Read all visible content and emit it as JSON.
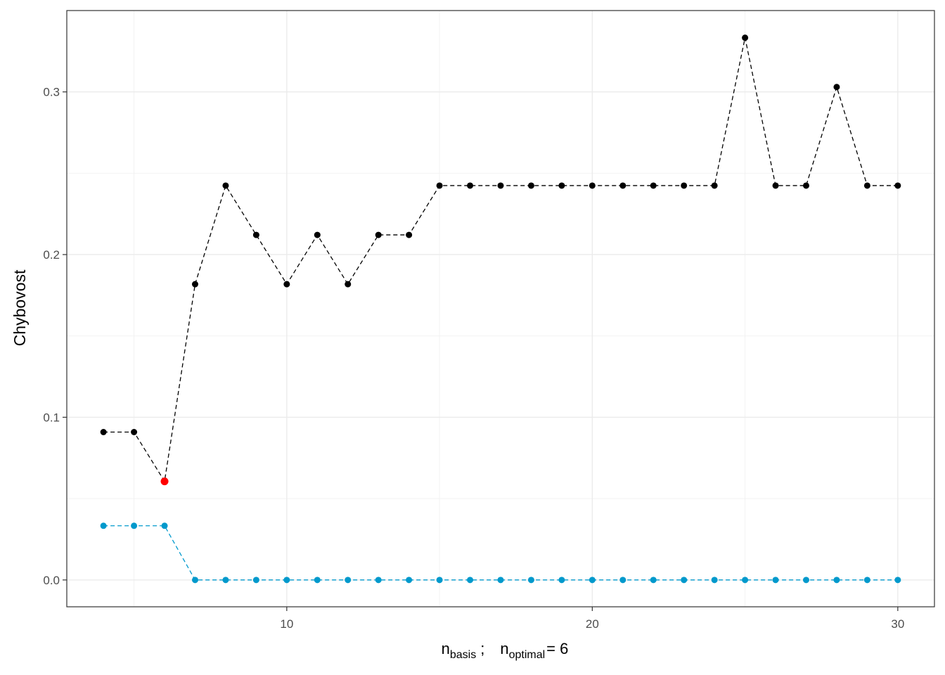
{
  "chart_data": {
    "type": "line",
    "title": "",
    "xlabel": {
      "n1": "n",
      "sub1": "basis",
      "sep": ";",
      "n2": "n",
      "sub2": "optimal",
      "eq": "= 6"
    },
    "ylabel": "Chybovost",
    "xlim": [
      2.8,
      31.2
    ],
    "ylim": [
      -0.0165,
      0.35
    ],
    "x_ticks": [
      10,
      20,
      30
    ],
    "y_ticks": [
      0.0,
      0.1,
      0.2,
      0.3
    ],
    "y_tick_labels": [
      "0.0",
      "0.1",
      "0.2",
      "0.3"
    ],
    "grid": true,
    "legend": "none",
    "x": [
      4,
      5,
      6,
      7,
      8,
      9,
      10,
      11,
      12,
      13,
      14,
      15,
      16,
      17,
      18,
      19,
      20,
      21,
      22,
      23,
      24,
      25,
      26,
      27,
      28,
      29,
      30
    ],
    "series": [
      {
        "color": "#000000",
        "line_style": "dashed",
        "values": [
          0.0909,
          0.0909,
          0.0606,
          0.1818,
          0.2424,
          0.2121,
          0.1818,
          0.2121,
          0.1818,
          0.2121,
          0.2121,
          0.2424,
          0.2424,
          0.2424,
          0.2424,
          0.2424,
          0.2424,
          0.2424,
          0.2424,
          0.2424,
          0.2424,
          0.3333,
          0.2424,
          0.2424,
          0.303,
          0.2424,
          0.2424
        ]
      },
      {
        "color": "#0099CC",
        "line_style": "dashed",
        "values": [
          0.0333,
          0.0333,
          0.0333,
          0,
          0,
          0,
          0,
          0,
          0,
          0,
          0,
          0,
          0,
          0,
          0,
          0,
          0,
          0,
          0,
          0,
          0,
          0,
          0,
          0,
          0,
          0,
          0
        ]
      }
    ],
    "highlight": {
      "x": 6,
      "y": 0.0606,
      "color": "#FF0000"
    }
  }
}
